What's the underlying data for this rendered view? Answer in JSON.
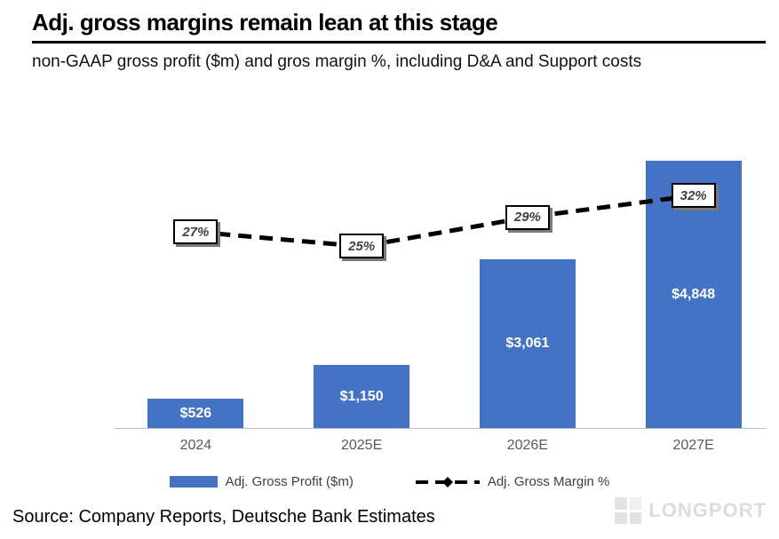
{
  "header": {
    "title": "Adj. gross margins remain lean at this stage",
    "subtitle": "non-GAAP gross profit ($m) and gros margin %, including D&A and Support costs"
  },
  "chart_data": {
    "type": "bar",
    "categories": [
      "2024",
      "2025E",
      "2026E",
      "2027E"
    ],
    "series": [
      {
        "name": "Adj. Gross Profit ($m)",
        "type": "bar",
        "values": [
          526,
          1150,
          3061,
          4848
        ],
        "labels": [
          "$526",
          "$1,150",
          "$3,061",
          "$4,848"
        ],
        "color": "#4472C4"
      },
      {
        "name": "Adj. Gross Margin %",
        "type": "line",
        "line_style": "dashed",
        "values": [
          27,
          25,
          29,
          32
        ],
        "labels": [
          "27%",
          "25%",
          "29%",
          "32%"
        ],
        "color": "#000000"
      }
    ],
    "title": "Adj. gross margins remain lean at this stage",
    "xlabel": "",
    "ylabel": "",
    "bar_axis_max": 5800,
    "line_axis_max": 44,
    "grid": false,
    "legend_position": "bottom"
  },
  "footer": {
    "source": "Source: Company Reports, Deutsche Bank Estimates",
    "watermark": "LONGPORT"
  }
}
